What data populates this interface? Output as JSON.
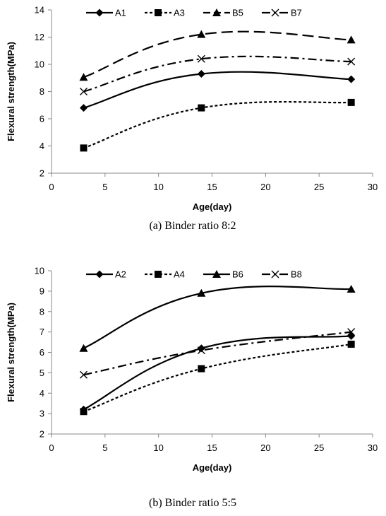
{
  "chart_data": [
    {
      "type": "line",
      "caption": "(a) Binder ratio 8:2",
      "xlabel": "Age(day)",
      "ylabel": "Flexural strength(MPa)",
      "xlim": [
        0,
        30
      ],
      "ylim": [
        2,
        14
      ],
      "xticks": [
        0,
        5,
        10,
        15,
        20,
        25,
        30
      ],
      "yticks": [
        2,
        4,
        6,
        8,
        10,
        12,
        14
      ],
      "grid": false,
      "legend_position": "top",
      "x": [
        3,
        14,
        28
      ],
      "series": [
        {
          "name": "A1",
          "values": [
            6.8,
            9.3,
            8.9
          ],
          "marker": "diamond",
          "dash": "solid"
        },
        {
          "name": "A3",
          "values": [
            3.85,
            6.8,
            7.2
          ],
          "marker": "square",
          "dash": "dotted"
        },
        {
          "name": "B5",
          "values": [
            9.05,
            12.2,
            11.8
          ],
          "marker": "triangle",
          "dash": "long-dash"
        },
        {
          "name": "B7",
          "values": [
            8.0,
            10.4,
            10.2
          ],
          "marker": "x",
          "dash": "dash-dot"
        }
      ]
    },
    {
      "type": "line",
      "caption": "(b) Binder ratio 5:5",
      "xlabel": "Age(day)",
      "ylabel": "Flexural strength(MPa)",
      "xlim": [
        0,
        30
      ],
      "ylim": [
        2,
        10
      ],
      "xticks": [
        0,
        5,
        10,
        15,
        20,
        25,
        30
      ],
      "yticks": [
        2,
        3,
        4,
        5,
        6,
        7,
        8,
        9,
        10
      ],
      "grid": false,
      "legend_position": "top",
      "x": [
        3,
        14,
        28
      ],
      "series": [
        {
          "name": "A2",
          "values": [
            3.2,
            6.2,
            6.8
          ],
          "marker": "diamond",
          "dash": "solid"
        },
        {
          "name": "A4",
          "values": [
            3.1,
            5.2,
            6.4
          ],
          "marker": "square",
          "dash": "dotted"
        },
        {
          "name": "B6",
          "values": [
            6.2,
            8.9,
            9.1
          ],
          "marker": "triangle",
          "dash": "solid"
        },
        {
          "name": "B8",
          "values": [
            4.9,
            6.1,
            7.0
          ],
          "marker": "x",
          "dash": "dash-dot"
        }
      ]
    }
  ]
}
